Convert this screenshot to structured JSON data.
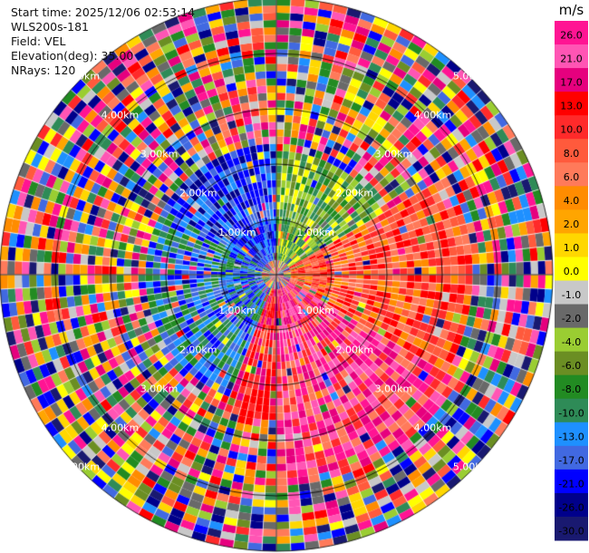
{
  "header": {
    "start_time": "Start time: 2025/12/06 02:53:14",
    "instrument": "WLS200s-181",
    "field": "Field: VEL",
    "elevation": "Elevation(deg): 35.00",
    "nrays": "NRays: 120"
  },
  "colorbar": {
    "unit": "m/s",
    "ticks": [
      "26.0",
      "21.0",
      "17.0",
      "13.0",
      "10.0",
      "8.0",
      "6.0",
      "4.0",
      "2.0",
      "1.0",
      "0.0",
      "-1.0",
      "-2.0",
      "-4.0",
      "-6.0",
      "-8.0",
      "-10.0",
      "-13.0",
      "-17.0",
      "-21.0",
      "-26.0",
      "-30.0"
    ],
    "colors": [
      "#ff1493",
      "#ff55b4",
      "#e6007e",
      "#ff0000",
      "#ff2a2a",
      "#ff5a3c",
      "#ff7a5a",
      "#ff8c00",
      "#ffa500",
      "#ffd700",
      "#ffff00",
      "#c8c8c8",
      "#696969",
      "#9acd32",
      "#6b8e23",
      "#228b22",
      "#2e8b57",
      "#1e90ff",
      "#4169e1",
      "#0000ff",
      "#00008b",
      "#191970"
    ]
  },
  "chart_data": {
    "type": "ppi",
    "field": "VEL",
    "units": "m/s",
    "nrays": 120,
    "elevation_deg": 35.0,
    "range_ring_labels": [
      "1.00km",
      "2.00km",
      "3.00km",
      "4.00km",
      "5.00km"
    ],
    "range_rings_km": [
      1,
      2,
      3,
      4,
      5
    ],
    "max_range_km": 5.0,
    "colorbar_range": [
      -30.0,
      26.0
    ],
    "gate_sectors": [
      {
        "az_from": 300,
        "az_to": 360,
        "range_km": [
          0.3,
          2.4
        ],
        "color_class": "blue"
      },
      {
        "az_from": 200,
        "az_to": 300,
        "range_km": [
          0.3,
          2.4
        ],
        "color_class": "blue-green"
      },
      {
        "az_from": 0,
        "az_to": 60,
        "range_km": [
          0.3,
          2.3
        ],
        "color_class": "green-yellow"
      },
      {
        "az_from": 60,
        "az_to": 120,
        "range_km": [
          0.3,
          3.6
        ],
        "color_class": "orange-red"
      },
      {
        "az_from": 120,
        "az_to": 180,
        "range_km": [
          0.3,
          3.8
        ],
        "color_class": "pink-magenta"
      },
      {
        "az_from": 180,
        "az_to": 210,
        "range_km": [
          0.3,
          2.6
        ],
        "color_class": "red"
      }
    ]
  }
}
